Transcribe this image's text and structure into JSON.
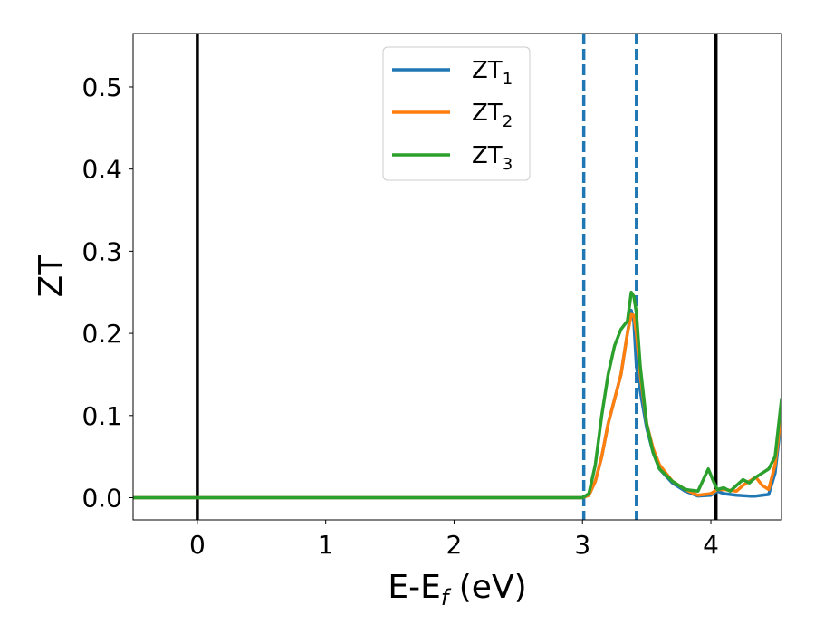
{
  "chart_data": {
    "type": "line",
    "xlabel": "E-E",
    "xlabel_sub": "f",
    "xlabel_unit": " (eV)",
    "ylabel": "ZT",
    "xlim": [
      -0.5,
      4.55
    ],
    "ylim": [
      -0.027,
      0.565
    ],
    "x_ticks": [
      0,
      1,
      2,
      3,
      4
    ],
    "x_tick_labels": [
      "0",
      "1",
      "2",
      "3",
      "4"
    ],
    "y_ticks": [
      0.0,
      0.1,
      0.2,
      0.3,
      0.4,
      0.5
    ],
    "y_tick_labels": [
      "0.0",
      "0.1",
      "0.2",
      "0.3",
      "0.4",
      "0.5"
    ],
    "grid": false,
    "legend_position": "upper center",
    "vertical_lines": [
      {
        "x": 0.0,
        "style": "solid",
        "color": "#000000"
      },
      {
        "x": 4.04,
        "style": "solid",
        "color": "#000000"
      },
      {
        "x": 3.01,
        "style": "dashed",
        "color": "#1f77b4"
      },
      {
        "x": 3.42,
        "style": "dashed",
        "color": "#1f77b4"
      }
    ],
    "series": [
      {
        "name": "ZT",
        "name_sub": "1",
        "color": "#1f77b4",
        "x": [
          -0.5,
          2.8,
          3.0,
          3.05,
          3.1,
          3.15,
          3.2,
          3.25,
          3.3,
          3.35,
          3.38,
          3.4,
          3.42,
          3.45,
          3.5,
          3.55,
          3.6,
          3.7,
          3.8,
          3.9,
          4.0,
          4.05,
          4.1,
          4.2,
          4.3,
          4.35,
          4.4,
          4.45,
          4.5,
          4.55
        ],
        "y": [
          0.0,
          0.0,
          0.0,
          0.003,
          0.02,
          0.05,
          0.09,
          0.12,
          0.15,
          0.2,
          0.228,
          0.215,
          0.16,
          0.13,
          0.085,
          0.055,
          0.035,
          0.018,
          0.008,
          0.002,
          0.003,
          0.008,
          0.005,
          0.003,
          0.002,
          0.002,
          0.003,
          0.004,
          0.03,
          0.1
        ]
      },
      {
        "name": "ZT",
        "name_sub": "2",
        "color": "#ff7f0e",
        "x": [
          -0.5,
          2.8,
          3.0,
          3.05,
          3.1,
          3.15,
          3.2,
          3.25,
          3.3,
          3.35,
          3.38,
          3.4,
          3.42,
          3.45,
          3.5,
          3.55,
          3.6,
          3.7,
          3.8,
          3.9,
          4.0,
          4.05,
          4.1,
          4.2,
          4.25,
          4.3,
          4.35,
          4.4,
          4.45,
          4.5,
          4.55
        ],
        "y": [
          0.0,
          0.0,
          0.0,
          0.003,
          0.02,
          0.05,
          0.09,
          0.12,
          0.15,
          0.2,
          0.223,
          0.222,
          0.2,
          0.15,
          0.09,
          0.06,
          0.04,
          0.02,
          0.01,
          0.003,
          0.005,
          0.01,
          0.01,
          0.008,
          0.015,
          0.02,
          0.025,
          0.015,
          0.01,
          0.04,
          0.105
        ]
      },
      {
        "name": "ZT",
        "name_sub": "3",
        "color": "#2ca02c",
        "x": [
          -0.5,
          2.8,
          3.0,
          3.05,
          3.1,
          3.15,
          3.2,
          3.25,
          3.3,
          3.35,
          3.38,
          3.4,
          3.42,
          3.45,
          3.5,
          3.55,
          3.6,
          3.7,
          3.8,
          3.9,
          3.95,
          3.98,
          4.02,
          4.05,
          4.1,
          4.15,
          4.2,
          4.25,
          4.3,
          4.35,
          4.4,
          4.45,
          4.5,
          4.55
        ],
        "y": [
          0.0,
          0.0,
          0.0,
          0.005,
          0.04,
          0.1,
          0.15,
          0.185,
          0.205,
          0.215,
          0.25,
          0.245,
          0.225,
          0.16,
          0.09,
          0.055,
          0.035,
          0.02,
          0.01,
          0.008,
          0.025,
          0.035,
          0.02,
          0.01,
          0.012,
          0.008,
          0.015,
          0.022,
          0.018,
          0.025,
          0.03,
          0.035,
          0.05,
          0.12
        ]
      }
    ]
  }
}
